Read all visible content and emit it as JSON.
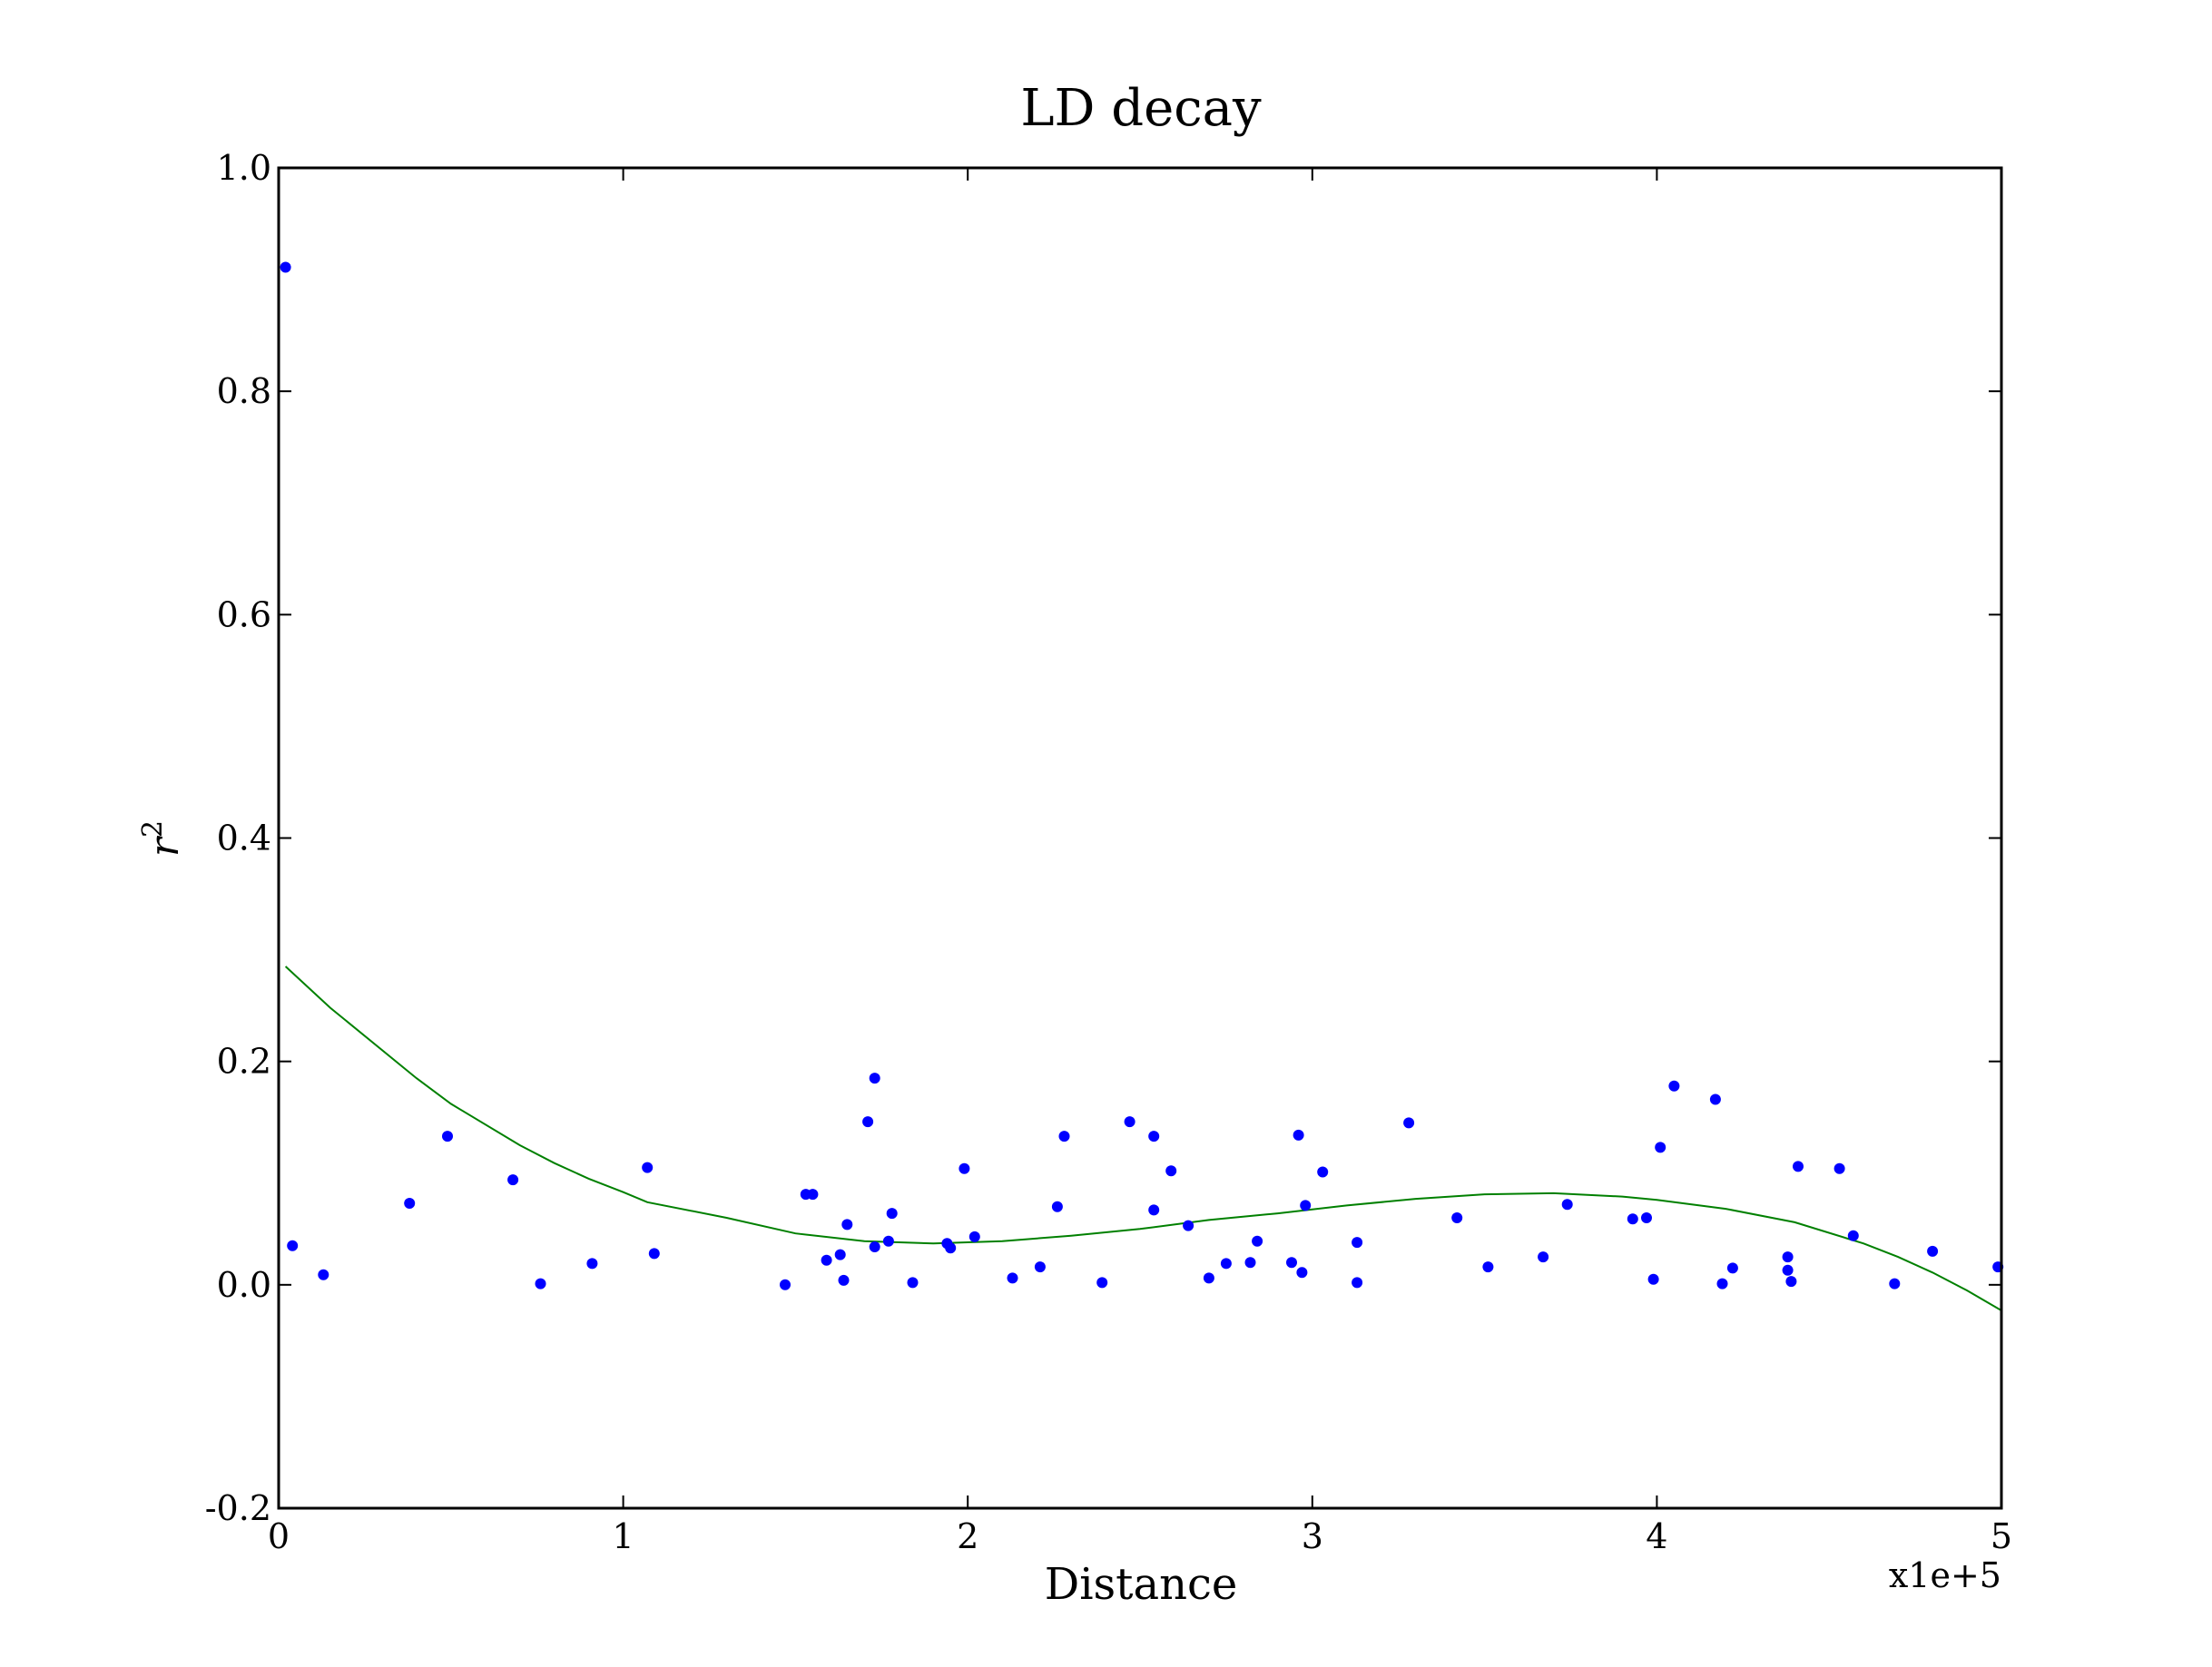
{
  "chart_data": {
    "type": "scatter",
    "title": "LD decay",
    "xlabel": "Distance",
    "ylabel": "r",
    "ylabel_superscript": "2",
    "x_multiplier_label": "x1e+5",
    "xlim": [
      0,
      5
    ],
    "ylim": [
      -0.2,
      1.0
    ],
    "x_ticks": [
      0,
      1,
      2,
      3,
      4,
      5
    ],
    "x_tick_labels": [
      "0",
      "1",
      "2",
      "3",
      "4",
      "5"
    ],
    "y_ticks": [
      -0.2,
      0.0,
      0.2,
      0.4,
      0.6,
      0.8,
      1.0
    ],
    "y_tick_labels": [
      "-0.2",
      "0.0",
      "0.2",
      "0.4",
      "0.6",
      "0.8",
      "1.0"
    ],
    "grid": false,
    "legend": "none",
    "colors": {
      "points": "#0000ff",
      "fit": "#008000",
      "axes": "#000000"
    },
    "series": [
      {
        "kind": "scatter",
        "x": [
          0.02,
          0.04,
          0.13,
          0.38,
          0.49,
          0.68,
          0.76,
          0.91,
          1.07,
          1.09,
          1.47,
          1.53,
          1.55,
          1.59,
          1.63,
          1.64,
          1.65,
          1.71,
          1.73,
          1.73,
          1.77,
          1.78,
          1.84,
          1.94,
          1.95,
          1.99,
          2.02,
          2.13,
          2.21,
          2.26,
          2.28,
          2.39,
          2.47,
          2.54,
          2.54,
          2.59,
          2.64,
          2.7,
          2.75,
          2.82,
          2.84,
          2.94,
          2.96,
          2.97,
          2.98,
          3.03,
          3.13,
          3.13,
          3.28,
          3.42,
          3.51,
          3.67,
          3.74,
          3.93,
          3.97,
          3.99,
          4.01,
          4.05,
          4.17,
          4.19,
          4.22,
          4.38,
          4.38,
          4.39,
          4.41,
          4.53,
          4.57,
          4.69,
          4.8,
          4.99
        ],
        "y": [
          0.911,
          0.035,
          0.009,
          0.073,
          0.133,
          0.094,
          0.001,
          0.019,
          0.105,
          0.028,
          0.0,
          0.081,
          0.081,
          0.022,
          0.027,
          0.004,
          0.054,
          0.146,
          0.185,
          0.034,
          0.039,
          0.064,
          0.002,
          0.037,
          0.033,
          0.104,
          0.043,
          0.006,
          0.016,
          0.07,
          0.133,
          0.002,
          0.146,
          0.133,
          0.067,
          0.102,
          0.053,
          0.006,
          0.019,
          0.02,
          0.039,
          0.02,
          0.134,
          0.011,
          0.071,
          0.101,
          0.038,
          0.002,
          0.145,
          0.06,
          0.016,
          0.025,
          0.072,
          0.059,
          0.06,
          0.005,
          0.123,
          0.178,
          0.166,
          0.001,
          0.015,
          0.025,
          0.013,
          0.003,
          0.106,
          0.104,
          0.044,
          0.001,
          0.03,
          0.016
        ]
      },
      {
        "kind": "line",
        "x": [
          0.02,
          0.15,
          0.4,
          0.5,
          0.7,
          0.8,
          0.9,
          1.0,
          1.07,
          1.3,
          1.5,
          1.7,
          1.9,
          2.1,
          2.3,
          2.5,
          2.7,
          2.9,
          3.1,
          3.3,
          3.5,
          3.7,
          3.9,
          4.0,
          4.2,
          4.4,
          4.6,
          4.7,
          4.8,
          4.9,
          5.0
        ],
        "y": [
          0.285,
          0.248,
          0.185,
          0.162,
          0.125,
          0.109,
          0.095,
          0.083,
          0.074,
          0.06,
          0.046,
          0.039,
          0.037,
          0.039,
          0.044,
          0.05,
          0.058,
          0.064,
          0.071,
          0.077,
          0.081,
          0.082,
          0.079,
          0.076,
          0.068,
          0.056,
          0.037,
          0.025,
          0.011,
          -0.005,
          -0.023
        ]
      }
    ]
  }
}
